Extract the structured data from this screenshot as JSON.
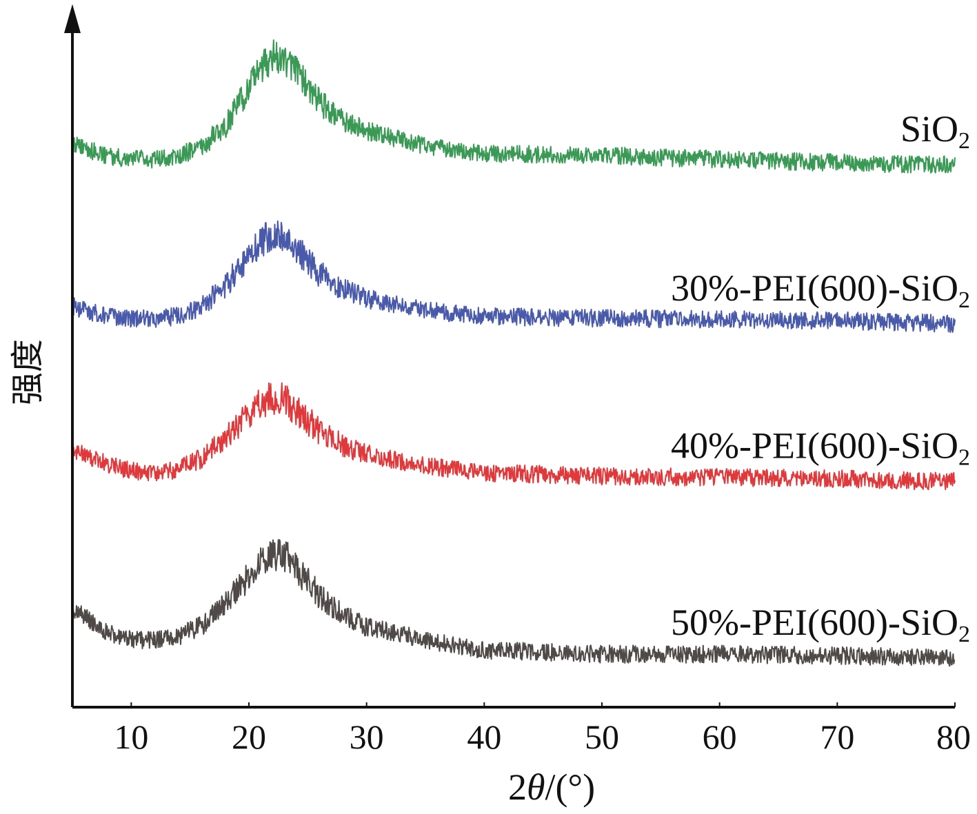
{
  "chart_data": {
    "type": "line",
    "title": "",
    "xlabel": "2θ/(°)",
    "xlabel_prefix": "2",
    "xlabel_symbol": "θ",
    "xlabel_suffix": "/(°)",
    "ylabel": "强度",
    "xlim": [
      5,
      80
    ],
    "ylim": [
      0,
      100
    ],
    "y_ticks_shown": false,
    "grid": false,
    "legend": "labels beside each curve on the right",
    "x_ticks": [
      10,
      20,
      30,
      40,
      50,
      60,
      70,
      80
    ],
    "x_tick_labels": [
      "10",
      "20",
      "30",
      "40",
      "50",
      "60",
      "70",
      "80"
    ],
    "peak_position_2theta": 22.5,
    "noise_amplitude": 1.3,
    "series": [
      {
        "name": "SiO2",
        "label_main": "SiO",
        "label_sub": "2",
        "color": "#3a9a55",
        "x": [
          5,
          8,
          10,
          12,
          14,
          16,
          18,
          20,
          21,
          22,
          23,
          24,
          26,
          28,
          30,
          35,
          40,
          50,
          60,
          70,
          80
        ],
        "y": [
          83,
          81,
          80.7,
          80.6,
          81.2,
          82.5,
          85.5,
          91,
          94,
          95.8,
          95.5,
          93.5,
          89,
          86.3,
          84.8,
          82.6,
          81.5,
          81.2,
          80.6,
          80.1,
          79.8
        ]
      },
      {
        "name": "30%-PEI(600)-SiO2",
        "label_main": "30%-PEI(600)-SiO",
        "label_sub": "2",
        "color": "#4a5aaa",
        "x": [
          5,
          8,
          10,
          12,
          14,
          16,
          18,
          20,
          21,
          22,
          23,
          24,
          26,
          28,
          30,
          35,
          40,
          50,
          60,
          70,
          80
        ],
        "y": [
          59,
          57.4,
          57.2,
          57.1,
          57.6,
          59,
          62,
          66.3,
          68.5,
          69.5,
          69.2,
          67.5,
          63.8,
          61.5,
          60.1,
          58.4,
          57.5,
          57.2,
          57.1,
          56.9,
          56.4
        ]
      },
      {
        "name": "40%-PEI(600)-SiO2",
        "label_main": "40%-PEI(600)-SiO",
        "label_sub": "2",
        "color": "#e0393c",
        "x": [
          5,
          8,
          10,
          12,
          14,
          16,
          18,
          20,
          21,
          22,
          23,
          24,
          26,
          28,
          30,
          35,
          40,
          50,
          60,
          70,
          80
        ],
        "y": [
          38,
          35.7,
          34.8,
          34.5,
          35,
          36.6,
          39.5,
          43,
          44.7,
          45.6,
          45.3,
          43.8,
          40.6,
          38.5,
          37.2,
          35.5,
          34.5,
          34,
          33.8,
          33.6,
          33.2
        ]
      },
      {
        "name": "50%-PEI(600)-SiO2",
        "label_main": "50%-PEI(600)-SiO",
        "label_sub": "2",
        "color": "#4f4a47",
        "x": [
          5,
          8,
          10,
          12,
          14,
          16,
          18,
          20,
          21,
          22,
          23,
          24,
          26,
          28,
          30,
          35,
          40,
          50,
          60,
          70,
          80
        ],
        "y": [
          14.5,
          11,
          10,
          9.8,
          10.4,
          12,
          15.2,
          19.3,
          21.4,
          22.6,
          22.3,
          20.6,
          16.4,
          13.5,
          11.8,
          9.9,
          8.4,
          7.8,
          7.8,
          7.6,
          7.2
        ]
      }
    ]
  }
}
